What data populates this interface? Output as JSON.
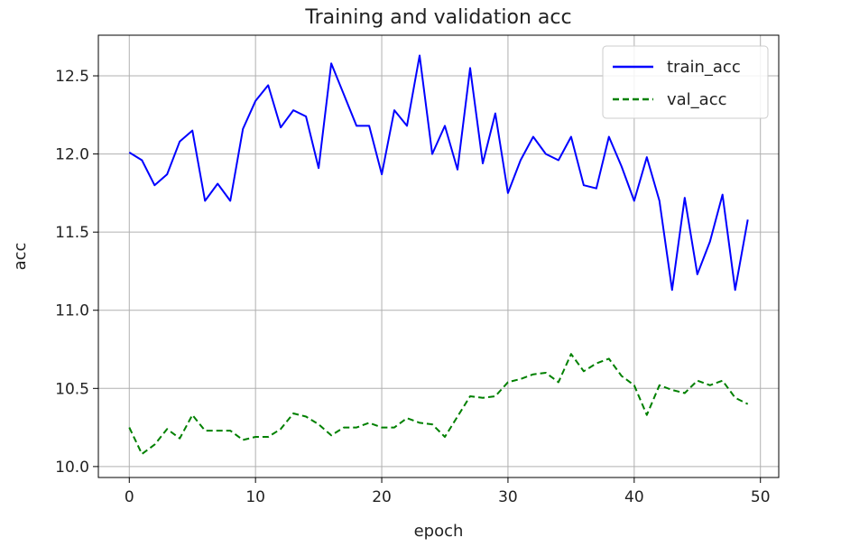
{
  "chart_data": {
    "type": "line",
    "title": "Training and validation acc",
    "xlabel": "epoch",
    "ylabel": "acc",
    "xlim": [
      -2.45,
      51.45
    ],
    "ylim": [
      9.93,
      12.76
    ],
    "xticks": [
      0,
      10,
      20,
      30,
      40,
      50
    ],
    "yticks": [
      10.0,
      10.5,
      11.0,
      11.5,
      12.0,
      12.5
    ],
    "ytick_labels": [
      "10.0",
      "10.5",
      "11.0",
      "11.5",
      "12.0",
      "12.5"
    ],
    "grid": true,
    "legend_position": "top-right",
    "x": [
      0,
      1,
      2,
      3,
      4,
      5,
      6,
      7,
      8,
      9,
      10,
      11,
      12,
      13,
      14,
      15,
      16,
      17,
      18,
      19,
      20,
      21,
      22,
      23,
      24,
      25,
      26,
      27,
      28,
      29,
      30,
      31,
      32,
      33,
      34,
      35,
      36,
      37,
      38,
      39,
      40,
      41,
      42,
      43,
      44,
      45,
      46,
      47,
      48,
      49
    ],
    "series": [
      {
        "name": "train_acc",
        "color": "#0000ff",
        "style": "solid",
        "values": [
          12.01,
          11.96,
          11.8,
          11.87,
          12.08,
          12.15,
          11.7,
          11.81,
          11.7,
          12.16,
          12.34,
          12.44,
          12.17,
          12.28,
          12.24,
          11.91,
          12.58,
          12.38,
          12.18,
          12.18,
          11.87,
          12.28,
          12.18,
          12.63,
          12.0,
          12.18,
          11.9,
          12.55,
          11.94,
          12.26,
          11.75,
          11.96,
          12.11,
          12.0,
          11.96,
          12.11,
          11.8,
          11.78,
          12.11,
          11.92,
          11.7,
          11.98,
          11.7,
          11.13,
          11.72,
          11.23,
          11.44,
          11.74,
          11.13,
          11.58
        ]
      },
      {
        "name": "val_acc",
        "color": "#008000",
        "style": "dashed",
        "values": [
          10.25,
          10.08,
          10.14,
          10.24,
          10.18,
          10.33,
          10.23,
          10.23,
          10.23,
          10.17,
          10.19,
          10.19,
          10.24,
          10.34,
          10.32,
          10.27,
          10.2,
          10.25,
          10.25,
          10.28,
          10.25,
          10.25,
          10.31,
          10.28,
          10.27,
          10.19,
          10.32,
          10.45,
          10.44,
          10.45,
          10.54,
          10.56,
          10.59,
          10.6,
          10.54,
          10.72,
          10.61,
          10.66,
          10.69,
          10.58,
          10.52,
          10.33,
          10.52,
          10.49,
          10.47,
          10.55,
          10.52,
          10.55,
          10.44,
          10.4
        ]
      }
    ]
  }
}
